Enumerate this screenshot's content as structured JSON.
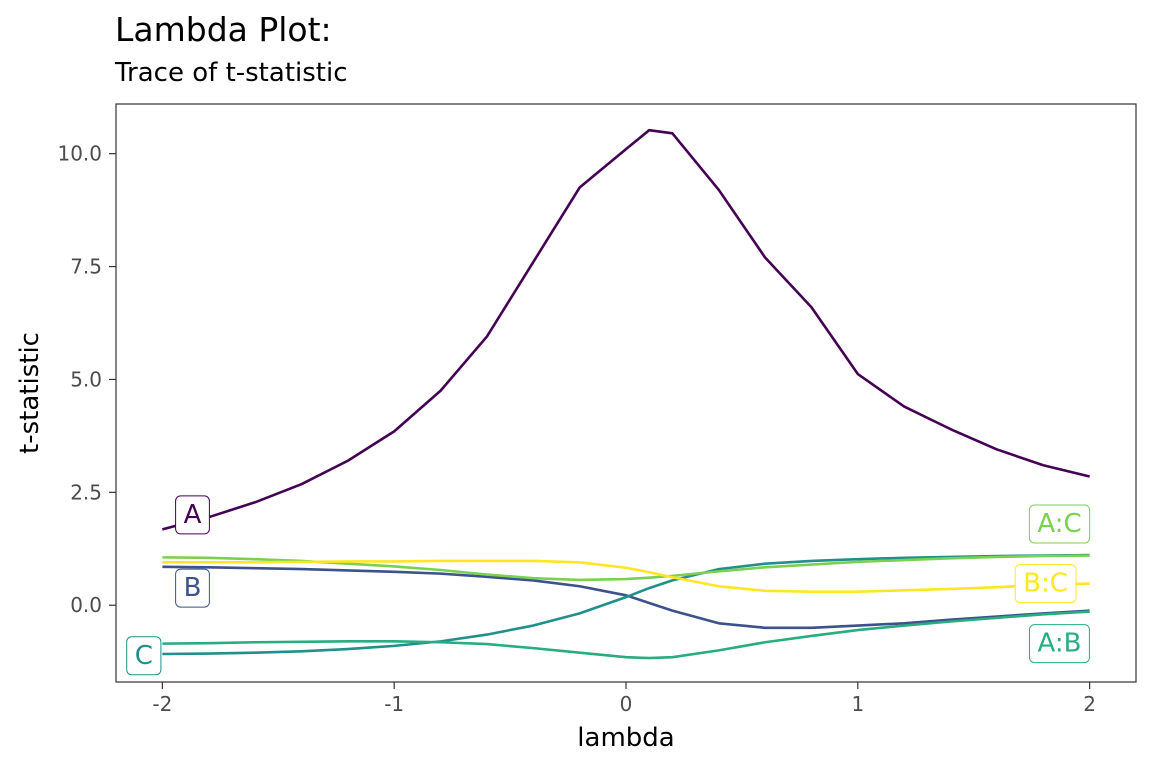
{
  "colors": {
    "A": "#440154",
    "B": "#3b528b",
    "C": "#21908c",
    "A:B": "#27ad81",
    "A:C": "#7ad151",
    "B:C": "#fde725",
    "panel_border": "#333333",
    "axis_text": "#4d4d4d"
  },
  "chart_data": {
    "type": "line",
    "title": "Lambda Plot:",
    "subtitle": "Trace of t-statistic",
    "xlabel": "lambda",
    "ylabel": "t-statistic",
    "xlim": [
      -2.2,
      2.2
    ],
    "ylim": [
      -1.7,
      11.1
    ],
    "x_ticks": [
      -2,
      -1,
      0,
      1,
      2
    ],
    "x_tick_labels": [
      "-2",
      "-1",
      "0",
      "1",
      "2"
    ],
    "y_ticks": [
      0,
      2.5,
      5,
      7.5,
      10
    ],
    "y_tick_labels": [
      "0.0",
      "2.5",
      "5.0",
      "7.5",
      "10.0"
    ],
    "grid": false,
    "x": [
      -2.0,
      -1.8,
      -1.6,
      -1.4,
      -1.2,
      -1.0,
      -0.8,
      -0.6,
      -0.4,
      -0.2,
      0.0,
      0.1,
      0.2,
      0.4,
      0.6,
      0.8,
      1.0,
      1.2,
      1.4,
      1.6,
      1.8,
      2.0
    ],
    "series": [
      {
        "name": "A",
        "values": [
          1.68,
          1.95,
          2.28,
          2.68,
          3.2,
          3.85,
          4.75,
          5.95,
          7.6,
          9.25,
          10.1,
          10.52,
          10.45,
          9.2,
          7.7,
          6.6,
          5.12,
          4.4,
          3.9,
          3.45,
          3.1,
          2.85
        ]
      },
      {
        "name": "B",
        "values": [
          0.85,
          0.84,
          0.82,
          0.8,
          0.77,
          0.74,
          0.7,
          0.63,
          0.55,
          0.42,
          0.22,
          0.05,
          -0.12,
          -0.4,
          -0.5,
          -0.5,
          -0.45,
          -0.4,
          -0.32,
          -0.25,
          -0.18,
          -0.12
        ]
      },
      {
        "name": "C",
        "values": [
          -1.08,
          -1.07,
          -1.05,
          -1.02,
          -0.97,
          -0.9,
          -0.8,
          -0.65,
          -0.45,
          -0.18,
          0.18,
          0.38,
          0.55,
          0.8,
          0.92,
          0.98,
          1.02,
          1.05,
          1.07,
          1.09,
          1.1,
          1.11
        ]
      },
      {
        "name": "A:B",
        "values": [
          -0.85,
          -0.84,
          -0.82,
          -0.81,
          -0.8,
          -0.8,
          -0.82,
          -0.86,
          -0.95,
          -1.05,
          -1.15,
          -1.17,
          -1.15,
          -1.0,
          -0.82,
          -0.68,
          -0.55,
          -0.45,
          -0.36,
          -0.28,
          -0.2,
          -0.14
        ]
      },
      {
        "name": "A:C",
        "values": [
          1.06,
          1.05,
          1.02,
          0.98,
          0.92,
          0.86,
          0.78,
          0.68,
          0.6,
          0.56,
          0.58,
          0.61,
          0.65,
          0.75,
          0.84,
          0.9,
          0.96,
          1.0,
          1.04,
          1.07,
          1.09,
          1.1
        ]
      },
      {
        "name": "B:C",
        "values": [
          0.95,
          0.95,
          0.95,
          0.96,
          0.97,
          0.97,
          0.98,
          0.98,
          0.98,
          0.95,
          0.83,
          0.73,
          0.62,
          0.42,
          0.32,
          0.3,
          0.3,
          0.33,
          0.36,
          0.4,
          0.45,
          0.48
        ]
      }
    ],
    "annotations": [
      {
        "text": "A",
        "series": "A",
        "x": -1.87,
        "y": 2.0
      },
      {
        "text": "B",
        "series": "B",
        "x": -1.87,
        "y": 0.38
      },
      {
        "text": "C",
        "series": "C",
        "x": -2.08,
        "y": -1.12
      },
      {
        "text": "A:C",
        "series": "A:C",
        "x": 1.87,
        "y": 1.8
      },
      {
        "text": "B:C",
        "series": "B:C",
        "x": 1.81,
        "y": 0.48
      },
      {
        "text": "A:B",
        "series": "A:B",
        "x": 1.87,
        "y": -0.85
      }
    ]
  }
}
